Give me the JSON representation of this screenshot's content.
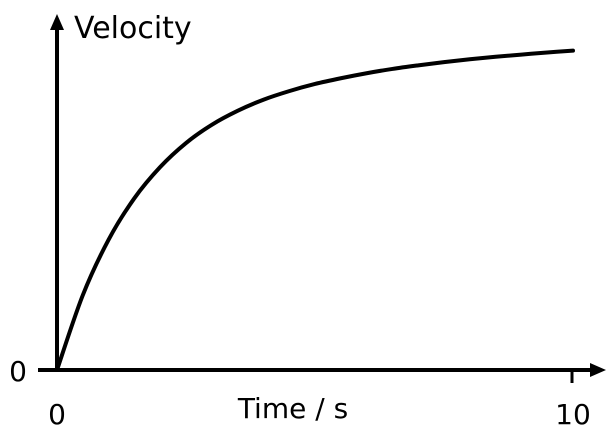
{
  "chart_data": {
    "type": "line",
    "title": "",
    "xlabel": "Time / s",
    "ylabel": "Velocity",
    "xlim": [
      0,
      10
    ],
    "ylim": [
      0,
      1
    ],
    "x_ticks": [
      "0",
      "10"
    ],
    "y_ticks": [
      "0"
    ],
    "grid": false,
    "series": [
      {
        "color": "#000000",
        "x": [
          0,
          0.5,
          1,
          1.5,
          2,
          2.5,
          3,
          3.5,
          4,
          4.5,
          5,
          5.5,
          6,
          6.5,
          7,
          7.5,
          8,
          8.5,
          9,
          9.5,
          10
        ],
        "y": [
          0,
          0.209,
          0.364,
          0.48,
          0.567,
          0.634,
          0.685,
          0.724,
          0.755,
          0.779,
          0.799,
          0.815,
          0.829,
          0.841,
          0.851,
          0.86,
          0.868,
          0.875,
          0.881,
          0.887,
          0.892
        ]
      }
    ]
  }
}
